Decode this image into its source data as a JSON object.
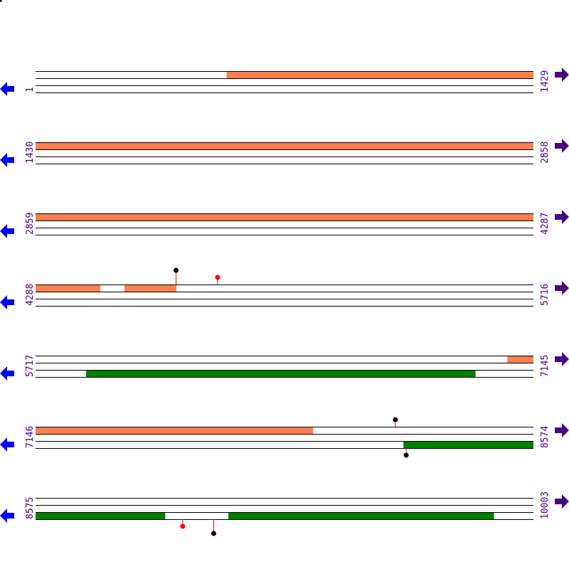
{
  "colors": {
    "track_line": "#000000",
    "feature_top": "#ff7f50",
    "feature_bottom": "#008000",
    "label": "#4b0082",
    "left_arrow": "#0000ff",
    "right_arrow": "#4b0082",
    "marker_stem": "#ff0000",
    "marker_black": "#000000",
    "marker_red": "#ff0000"
  },
  "icons": {
    "left": "arrow-left-icon",
    "right": "arrow-right-icon"
  },
  "rows": [
    {
      "start": "1",
      "end": "1429",
      "s": 1,
      "e": 1429,
      "features": [
        {
          "track": 0,
          "from": 549,
          "to": 1429,
          "color": "feature_top"
        }
      ],
      "markers": []
    },
    {
      "start": "1430",
      "end": "2858",
      "s": 1430,
      "e": 2858,
      "features": [
        {
          "track": 0,
          "from": 1430,
          "to": 2858,
          "color": "feature_top"
        }
      ],
      "markers": []
    },
    {
      "start": "2859",
      "end": "4287",
      "s": 2859,
      "e": 4287,
      "features": [
        {
          "track": 0,
          "from": 2859,
          "to": 4287,
          "color": "feature_top"
        }
      ],
      "markers": []
    },
    {
      "start": "4288",
      "end": "5716",
      "s": 4288,
      "e": 5716,
      "features": [
        {
          "track": 0,
          "from": 4288,
          "to": 4474,
          "color": "feature_top"
        },
        {
          "track": 0,
          "from": 4543,
          "to": 4692,
          "color": "feature_top"
        }
      ],
      "markers": [
        {
          "pos": 4690,
          "dir": "up",
          "len": 20,
          "color": "marker_black"
        },
        {
          "pos": 4809,
          "dir": "up",
          "len": 10,
          "color": "marker_red"
        }
      ]
    },
    {
      "start": "5717",
      "end": "7145",
      "s": 5717,
      "e": 7145,
      "features": [
        {
          "track": 0,
          "from": 7070,
          "to": 7145,
          "color": "feature_top"
        },
        {
          "track": 2,
          "from": 5862,
          "to": 6979,
          "color": "feature_bottom"
        }
      ],
      "markers": []
    },
    {
      "start": "7146",
      "end": "8574",
      "s": 7146,
      "e": 8574,
      "features": [
        {
          "track": 0,
          "from": 7146,
          "to": 7942,
          "color": "feature_top"
        },
        {
          "track": 2,
          "from": 8201,
          "to": 8574,
          "color": "feature_bottom"
        }
      ],
      "markers": [
        {
          "pos": 8177,
          "dir": "up",
          "len": 10,
          "color": "marker_black"
        },
        {
          "pos": 8208,
          "dir": "down",
          "len": 10,
          "color": "marker_black"
        }
      ]
    },
    {
      "start": "8575",
      "end": "10003",
      "s": 8575,
      "e": 10003,
      "features": [
        {
          "track": 2,
          "from": 8575,
          "to": 8947,
          "color": "feature_bottom"
        },
        {
          "track": 2,
          "from": 9128,
          "to": 9890,
          "color": "feature_bottom"
        }
      ],
      "markers": [
        {
          "pos": 8996,
          "dir": "down",
          "len": 10,
          "color": "marker_red"
        },
        {
          "pos": 9085,
          "dir": "down",
          "len": 20,
          "color": "marker_black"
        }
      ]
    }
  ]
}
